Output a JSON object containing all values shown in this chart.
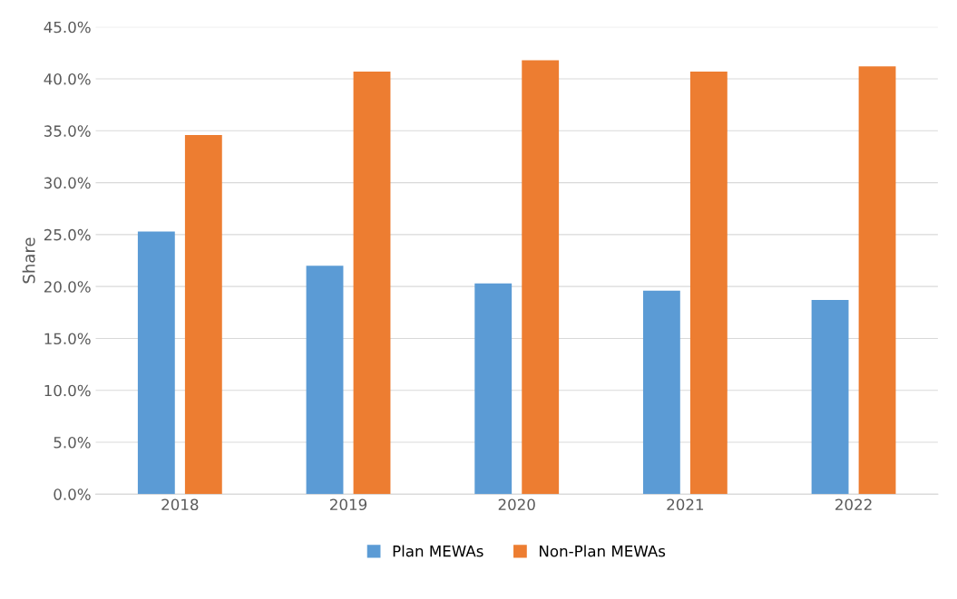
{
  "chart_data": {
    "type": "bar",
    "ylabel": "Share",
    "categories": [
      "2018",
      "2019",
      "2020",
      "2021",
      "2022"
    ],
    "series": [
      {
        "name": "Plan MEWAs",
        "color": "#5b9bd5",
        "values": [
          25.3,
          22.0,
          20.3,
          19.6,
          18.7
        ]
      },
      {
        "name": "Non-Plan MEWAs",
        "color": "#ed7d31",
        "values": [
          34.6,
          40.7,
          41.8,
          40.7,
          41.2
        ]
      }
    ],
    "ylim": [
      0,
      45
    ],
    "yticks": [
      {
        "value": 0,
        "label": "0.0%"
      },
      {
        "value": 5,
        "label": "5.0%"
      },
      {
        "value": 10,
        "label": "10.0%"
      },
      {
        "value": 15,
        "label": "15.0%"
      },
      {
        "value": 20,
        "label": "20.0%"
      },
      {
        "value": 25,
        "label": "25.0%"
      },
      {
        "value": 30,
        "label": "30.0%"
      },
      {
        "value": 35,
        "label": "35.0%"
      },
      {
        "value": 40,
        "label": "40.0%"
      },
      {
        "value": 45,
        "label": "45.0%"
      }
    ],
    "grid": "y",
    "legend": "bottom"
  }
}
